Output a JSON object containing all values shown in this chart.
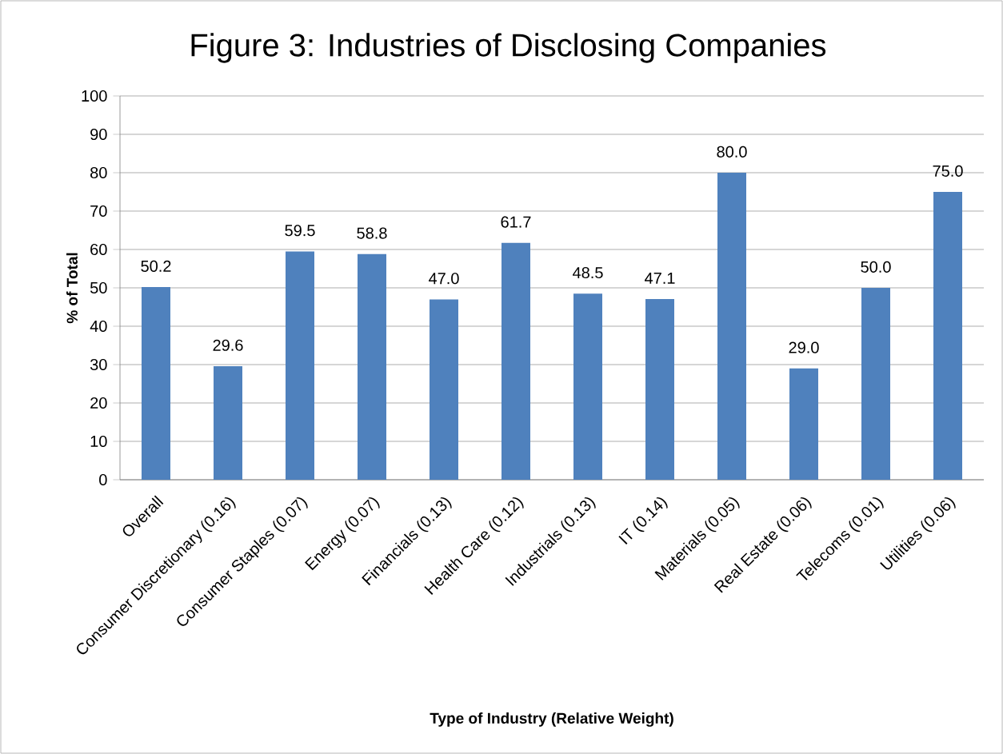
{
  "chart_data": {
    "type": "bar",
    "title": "Figure 3: Industries of Disclosing Companies",
    "xlabel": "Type of Industry (Relative Weight)",
    "ylabel": "% of Total",
    "categories": [
      "Overall",
      "Consumer Discretionary (0.16)",
      "Consumer Staples (0.07)",
      "Energy (0.07)",
      "Financials (0.13)",
      "Health Care (0.12)",
      "Industrials (0.13)",
      "IT (0.14)",
      "Materials (0.05)",
      "Real Estate (0.06)",
      "Telecoms (0.01)",
      "Utilities (0.06)"
    ],
    "values": [
      50.2,
      29.6,
      59.5,
      58.8,
      47.0,
      61.7,
      48.5,
      47.1,
      80.0,
      29.0,
      50.0,
      75.0
    ],
    "color": "#4f81bd",
    "ylim": [
      0,
      100
    ],
    "yticks": [
      0,
      10,
      20,
      30,
      40,
      50,
      60,
      70,
      80,
      90,
      100
    ],
    "value_labels": [
      "50.2",
      "29.6",
      "59.5",
      "58.8",
      "47.0",
      "61.7",
      "48.5",
      "47.1",
      "80.0",
      "29.0",
      "50.0",
      "75.0"
    ],
    "grid": "y"
  }
}
